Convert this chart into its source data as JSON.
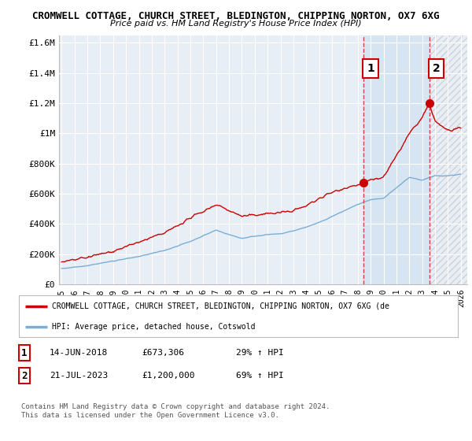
{
  "title1": "CROMWELL COTTAGE, CHURCH STREET, BLEDINGTON, CHIPPING NORTON, OX7 6XG",
  "title2": "Price paid vs. HM Land Registry's House Price Index (HPI)",
  "ylabel_ticks": [
    "£0",
    "£200K",
    "£400K",
    "£600K",
    "£800K",
    "£1M",
    "£1.2M",
    "£1.4M",
    "£1.6M"
  ],
  "ytick_values": [
    0,
    200000,
    400000,
    600000,
    800000,
    1000000,
    1200000,
    1400000,
    1600000
  ],
  "ylim": [
    0,
    1650000
  ],
  "xlim_start": 1994.8,
  "xlim_end": 2026.5,
  "xtick_years": [
    1995,
    1996,
    1997,
    1998,
    1999,
    2000,
    2001,
    2002,
    2003,
    2004,
    2005,
    2006,
    2007,
    2008,
    2009,
    2010,
    2011,
    2012,
    2013,
    2014,
    2015,
    2016,
    2017,
    2018,
    2019,
    2020,
    2021,
    2022,
    2023,
    2024,
    2025,
    2026
  ],
  "red_line_color": "#cc0000",
  "blue_line_color": "#7aaed6",
  "transaction1_x": 2018.45,
  "transaction1_y": 673306,
  "transaction2_x": 2023.54,
  "transaction2_y": 1200000,
  "vline1_x": 2018.45,
  "vline2_x": 2023.54,
  "shade_color": "#ddeeff",
  "legend_red_label": "CROMWELL COTTAGE, CHURCH STREET, BLEDINGTON, CHIPPING NORTON, OX7 6XG (de",
  "legend_blue_label": "HPI: Average price, detached house, Cotswold",
  "copyright": "Contains HM Land Registry data © Crown copyright and database right 2024.\nThis data is licensed under the Open Government Licence v3.0.",
  "bg_color": "#ffffff",
  "plot_bg_color": "#e8eef5"
}
